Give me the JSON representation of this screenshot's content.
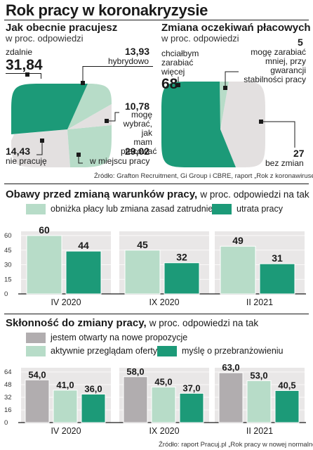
{
  "title": "Rok pracy w koronakryzysie",
  "colors": {
    "teal": "#1c9a78",
    "light_green": "#b7dcc8",
    "light_grey": "#e3e0e0",
    "panel": "#e9e7e7",
    "grey_bar": "#b1adaf",
    "dark": "#1a1a1a"
  },
  "chart_data": [
    {
      "type": "pie",
      "title": "Jak obecnie pracujesz",
      "subtitle": "w proc. odpowiedzi",
      "slices": [
        {
          "name": "zdalnie",
          "value": 31.84,
          "value_label": "31,84"
        },
        {
          "name": "hybrydowo",
          "value": 13.93,
          "value_label": "13,93"
        },
        {
          "name": "mogę wybrać, jak mam pracować",
          "value": 10.78,
          "value_label": "10,78"
        },
        {
          "name": "w miejscu pracy",
          "value": 29.02,
          "value_label": "29,02"
        },
        {
          "name": "nie pracuję",
          "value": 14.43,
          "value_label": "14,43"
        }
      ]
    },
    {
      "type": "pie",
      "title": "Zmiana oczekiwań płacowych",
      "subtitle": "w proc. odpowiedzi",
      "slices": [
        {
          "name": "chciałbym zarabiać więcej",
          "value": 68,
          "value_label": "68"
        },
        {
          "name": "mogę zarabiać mniej, przy gwarancji stabilności pracy",
          "value": 5,
          "value_label": "5"
        },
        {
          "name": "bez zmian",
          "value": 27,
          "value_label": "27"
        }
      ],
      "source": "Źródło: Grafton Recruitment, Gi Group i CBRE, raport „Rok z koronawirusem”"
    },
    {
      "type": "bar",
      "title": "Obawy przed zmianą warunków pracy,",
      "subtitle": "w proc. odpowiedzi na tak",
      "categories": [
        "IV 2020",
        "IX 2020",
        "II 2021"
      ],
      "series": [
        {
          "name": "obniżka płacy lub zmiana zasad zatrudnienia",
          "values": [
            60,
            45,
            49
          ],
          "labels": [
            "60",
            "45",
            "49"
          ]
        },
        {
          "name": "utrata pracy",
          "values": [
            44,
            32,
            31
          ],
          "labels": [
            "44",
            "32",
            "31"
          ]
        }
      ],
      "yticks": [
        "0",
        "15",
        "30",
        "45",
        "60"
      ],
      "ylim": [
        0,
        60
      ]
    },
    {
      "type": "bar",
      "title": "Skłonność do zmiany pracy,",
      "subtitle": "w proc. odpowiedzi na tak",
      "categories": [
        "IV 2020",
        "IX 2020",
        "II 2021"
      ],
      "series": [
        {
          "name": "jestem otwarty na nowe propozycje",
          "values": [
            54.0,
            58.0,
            63.0
          ],
          "labels": [
            "54,0",
            "58,0",
            "63,0"
          ]
        },
        {
          "name": "aktywnie przeglądam oferty",
          "values": [
            41.0,
            45.0,
            53.0
          ],
          "labels": [
            "41,0",
            "45,0",
            "53,0"
          ]
        },
        {
          "name": "myślę o przebranżowieniu",
          "values": [
            36.0,
            37.0,
            40.5
          ],
          "labels": [
            "36,0",
            "37,0",
            "40,5"
          ]
        }
      ],
      "yticks": [
        "0",
        "16",
        "32",
        "48",
        "64"
      ],
      "ylim": [
        0,
        64
      ],
      "source": "Źródło: raport Pracuj.pl „Rok pracy w nowej normalności”"
    }
  ]
}
